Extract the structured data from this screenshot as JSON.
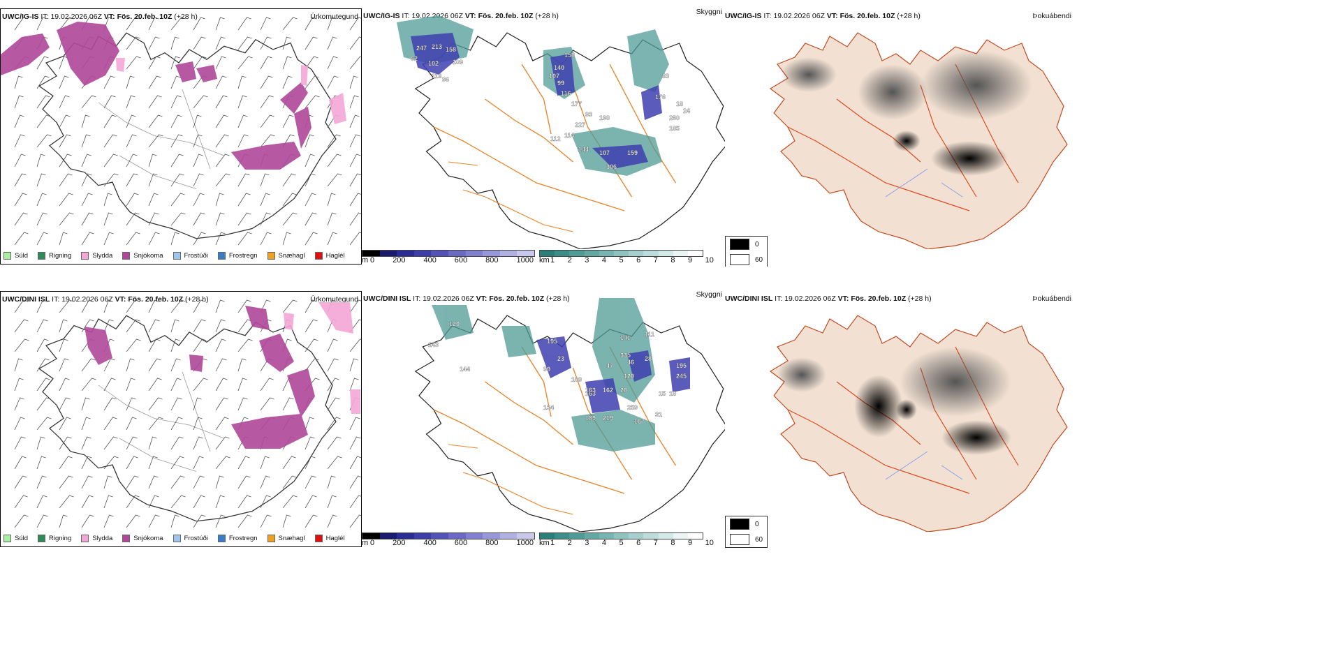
{
  "rows": [
    {
      "model": "UWC/IG-IS",
      "it_label": "IT:",
      "it_value": "19.02.2026 06Z",
      "vt_label": "VT:",
      "vt_value": "Fös. 20.feb. 10Z",
      "lead": "(+28 h)",
      "precip_title": "Úrkomutegund",
      "cloud_title": "Skyggni",
      "fog_title": "Þokuábendi",
      "cloud_labels": [
        "247",
        "213",
        "158",
        "109",
        "102",
        "62",
        "118",
        "96",
        "158",
        "140",
        "107",
        "99",
        "116",
        "177",
        "93",
        "190",
        "227",
        "114",
        "112",
        "144",
        "107",
        "159",
        "306",
        "176",
        "83",
        "260",
        "185",
        "18",
        "24"
      ]
    },
    {
      "model": "UWC/DINI ISL",
      "it_label": "IT:",
      "it_value": "19.02.2026 06Z",
      "vt_label": "VT:",
      "vt_value": "Fös. 20.feb. 10Z",
      "lead": "(+28 h)",
      "precip_title": "Úrkomutegund",
      "cloud_title": "Skyggni",
      "fog_title": "Þokuábendi",
      "cloud_labels": [
        "120",
        "143",
        "144",
        "195",
        "163",
        "23",
        "99",
        "109",
        "47",
        "141",
        "111",
        "335",
        "46",
        "28",
        "120",
        "163",
        "162",
        "20",
        "195",
        "245",
        "15",
        "18",
        "259",
        "167",
        "189",
        "219",
        "134",
        "31"
      ]
    }
  ],
  "precip_legend": [
    {
      "label": "Súld",
      "color": "#a6f0a0"
    },
    {
      "label": "Rigning",
      "color": "#2e8b57"
    },
    {
      "label": "Slydda",
      "color": "#f4a6d7"
    },
    {
      "label": "Snjókoma",
      "color": "#b0479a"
    },
    {
      "label": "Frostúði",
      "color": "#9ec7f0"
    },
    {
      "label": "Frostregn",
      "color": "#3a7bc8"
    },
    {
      "label": "Snæhagl",
      "color": "#f0a020"
    },
    {
      "label": "Haglél",
      "color": "#e01010"
    }
  ],
  "cloudbase": {
    "unit": "m",
    "ticks": [
      "0",
      "200",
      "400",
      "600",
      "800",
      "1000"
    ],
    "colors": [
      "#000",
      "#1a1a6e",
      "#2b2b95",
      "#3e3eaa",
      "#5252b8",
      "#6a6ac4",
      "#8080cf",
      "#9797d9",
      "#b0b0e3",
      "#c8c8ed"
    ]
  },
  "visibility": {
    "unit": "km",
    "ticks": [
      "1",
      "2",
      "3",
      "4",
      "5",
      "6",
      "7",
      "8",
      "9",
      "10"
    ],
    "colors": [
      "#2a7f79",
      "#3b8d87",
      "#4f9b95",
      "#63a8a3",
      "#78b5b1",
      "#8ec3bf",
      "#a5d0cd",
      "#bcdddb",
      "#d3eae9",
      "#eaf5f4",
      "#ffffff"
    ]
  },
  "fog_key": [
    {
      "label": "0",
      "color": "#000000"
    },
    {
      "label": "60",
      "color": "#ffffff"
    }
  ],
  "colors": {
    "snow": "#b0479a",
    "sleet": "#f4a6d7",
    "cloud_blue": "#3f3fb0",
    "teal": "#4f9b95",
    "road": "#e8842c",
    "land_fog": "#f2e1d3",
    "red_road": "#e04a20"
  }
}
